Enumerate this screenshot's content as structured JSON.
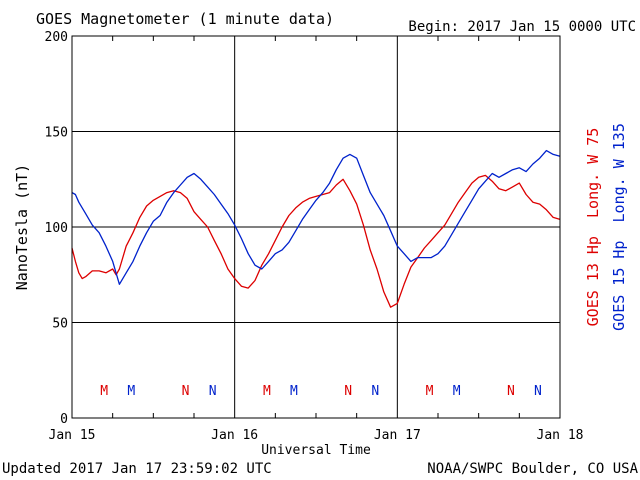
{
  "chart_data": {
    "type": "line",
    "title": "GOES Magnetometer (1 minute data)",
    "begin_label": "Begin:  2017 Jan 15 0000 UTC",
    "ylabel": "NanoTesla (nT)",
    "xlabel": "Universal Time",
    "ylim": [
      0,
      200
    ],
    "y_ticks": [
      "0",
      "50",
      "100",
      "150",
      "200"
    ],
    "x_ticks": [
      "Jan 15",
      "Jan 16",
      "Jan 17",
      "Jan 18"
    ],
    "x_range_hours": [
      0,
      72
    ],
    "grid": true,
    "updated_label": "Updated 2017 Jan 17 23:59:02 UTC",
    "credit_label": "NOAA/SWPC Boulder, CO USA",
    "series": [
      {
        "name": "GOES 13 Hp  Long. W 75",
        "color": "#dd0000",
        "x": [
          0,
          0.5,
          1,
          1.5,
          2,
          3,
          4,
          5,
          6,
          6.5,
          7,
          8,
          9,
          10,
          11,
          12,
          13,
          14,
          15,
          16,
          17,
          18,
          19,
          20,
          21,
          22,
          23,
          24,
          25,
          26,
          27,
          28,
          29,
          30,
          31,
          32,
          33,
          34,
          35,
          36,
          37,
          38,
          39,
          40,
          41,
          42,
          43,
          44,
          45,
          46,
          47,
          48,
          49,
          50,
          51,
          52,
          53,
          54,
          55,
          56,
          57,
          58,
          59,
          60,
          61,
          62,
          63,
          64,
          65,
          66,
          67,
          68,
          69,
          70,
          71,
          72
        ],
        "y": [
          89,
          82,
          76,
          73,
          74,
          77,
          77,
          76,
          78,
          75,
          78,
          90,
          97,
          105,
          111,
          114,
          116,
          118,
          119,
          118,
          115,
          108,
          104,
          100,
          93,
          86,
          78,
          73,
          69,
          68,
          72,
          80,
          86,
          93,
          100,
          106,
          110,
          113,
          115,
          116,
          117,
          118,
          122,
          125,
          119,
          112,
          101,
          88,
          78,
          66,
          58,
          60,
          70,
          79,
          84,
          89,
          93,
          97,
          101,
          107,
          113,
          118,
          123,
          126,
          127,
          124,
          120,
          119,
          121,
          123,
          117,
          113,
          112,
          109,
          105,
          104
        ]
      },
      {
        "name": "GOES 15 Hp  Long. W 135",
        "color": "#0022cc",
        "x": [
          0,
          0.5,
          1,
          2,
          3,
          4,
          5,
          6,
          7,
          7.5,
          8,
          9,
          10,
          11,
          12,
          13,
          14,
          15,
          16,
          17,
          18,
          19,
          20,
          21,
          22,
          23,
          24,
          25,
          26,
          27,
          28,
          29,
          30,
          31,
          32,
          33,
          34,
          35,
          36,
          37,
          38,
          39,
          40,
          41,
          42,
          43,
          44,
          45,
          46,
          47,
          48,
          49,
          50,
          51,
          52,
          53,
          54,
          55,
          56,
          57,
          58,
          59,
          60,
          61,
          62,
          63,
          64,
          65,
          66,
          67,
          68,
          69,
          70,
          71,
          72
        ],
        "y": [
          118,
          117,
          113,
          107,
          101,
          97,
          90,
          82,
          70,
          73,
          76,
          82,
          90,
          97,
          103,
          106,
          113,
          118,
          122,
          126,
          128,
          125,
          121,
          117,
          112,
          107,
          101,
          94,
          86,
          80,
          78,
          82,
          86,
          88,
          92,
          98,
          104,
          109,
          114,
          118,
          123,
          130,
          136,
          138,
          136,
          127,
          118,
          112,
          106,
          98,
          90,
          86,
          82,
          84,
          84,
          84,
          86,
          90,
          96,
          102,
          108,
          114,
          120,
          124,
          128,
          126,
          128,
          130,
          131,
          129,
          133,
          136,
          140,
          138,
          137
        ]
      }
    ],
    "markers": [
      {
        "label": "M",
        "color": "#dd0000",
        "x_hour": 4.75
      },
      {
        "label": "M",
        "color": "#0022cc",
        "x_hour": 8.75
      },
      {
        "label": "N",
        "color": "#dd0000",
        "x_hour": 16.75
      },
      {
        "label": "N",
        "color": "#0022cc",
        "x_hour": 20.75
      },
      {
        "label": "M",
        "color": "#dd0000",
        "x_hour": 28.75
      },
      {
        "label": "M",
        "color": "#0022cc",
        "x_hour": 32.75
      },
      {
        "label": "N",
        "color": "#dd0000",
        "x_hour": 40.75
      },
      {
        "label": "N",
        "color": "#0022cc",
        "x_hour": 44.75
      },
      {
        "label": "M",
        "color": "#dd0000",
        "x_hour": 52.75
      },
      {
        "label": "M",
        "color": "#0022cc",
        "x_hour": 56.75
      },
      {
        "label": "N",
        "color": "#dd0000",
        "x_hour": 64.75
      },
      {
        "label": "N",
        "color": "#0022cc",
        "x_hour": 68.75
      }
    ]
  }
}
